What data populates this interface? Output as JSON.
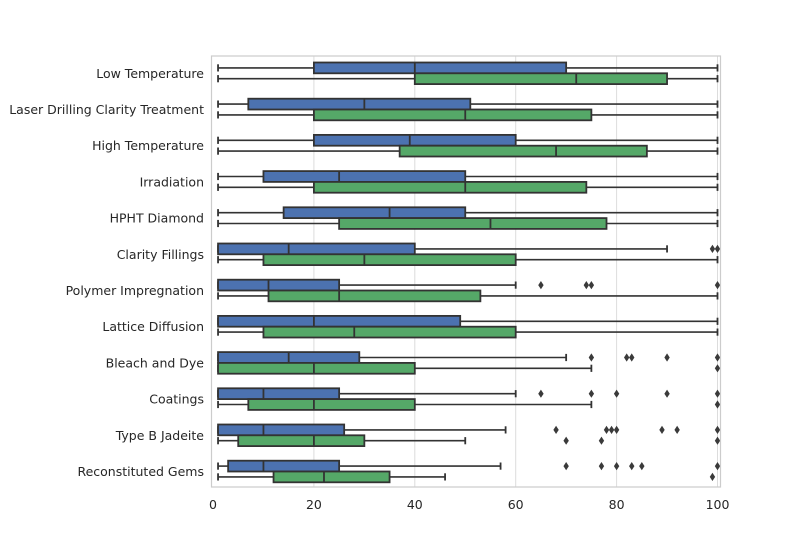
{
  "figure": {
    "background": "#ffffff"
  },
  "chart_data": {
    "type": "boxplot",
    "orientation": "horizontal",
    "title": "",
    "xlabel": "",
    "ylabel": "",
    "xlim": [
      0,
      100
    ],
    "xticks": [
      0,
      20,
      40,
      60,
      80,
      100
    ],
    "grid": "vertical-only",
    "legend": null,
    "categories": [
      "Low Temperature",
      "Laser Drilling Clarity Treatment",
      "High Temperature",
      "Irradiation",
      "HPHT Diamond",
      "Clarity Fillings",
      "Polymer Impregnation",
      "Lattice Diffusion",
      "Bleach and Dye",
      "Coatings",
      "Type B Jadeite",
      "Reconstituted Gems"
    ],
    "series": [
      {
        "name": "series-1-blue",
        "color": "#4C72B0",
        "boxes": [
          {
            "whislo": 1,
            "q1": 20,
            "med": 40,
            "q3": 70,
            "whishi": 100,
            "fliers": []
          },
          {
            "whislo": 1,
            "q1": 7,
            "med": 30,
            "q3": 51,
            "whishi": 100,
            "fliers": []
          },
          {
            "whislo": 1,
            "q1": 20,
            "med": 39,
            "q3": 60,
            "whishi": 100,
            "fliers": []
          },
          {
            "whislo": 1,
            "q1": 10,
            "med": 25,
            "q3": 50,
            "whishi": 100,
            "fliers": []
          },
          {
            "whislo": 1,
            "q1": 14,
            "med": 35,
            "q3": 50,
            "whishi": 100,
            "fliers": []
          },
          {
            "whislo": 1,
            "q1": 1,
            "med": 15,
            "q3": 40,
            "whishi": 90,
            "fliers": [
              99,
              100
            ]
          },
          {
            "whislo": 1,
            "q1": 1,
            "med": 11,
            "q3": 25,
            "whishi": 60,
            "fliers": [
              65,
              74,
              75,
              100
            ]
          },
          {
            "whislo": 1,
            "q1": 1,
            "med": 20,
            "q3": 49,
            "whishi": 100,
            "fliers": []
          },
          {
            "whislo": 1,
            "q1": 1,
            "med": 15,
            "q3": 29,
            "whishi": 70,
            "fliers": [
              75,
              82,
              83,
              90,
              100
            ]
          },
          {
            "whislo": 1,
            "q1": 1,
            "med": 10,
            "q3": 25,
            "whishi": 60,
            "fliers": [
              65,
              75,
              80,
              90,
              100
            ]
          },
          {
            "whislo": 1,
            "q1": 1,
            "med": 10,
            "q3": 26,
            "whishi": 58,
            "fliers": [
              68,
              78,
              79,
              80,
              89,
              92,
              100
            ]
          },
          {
            "whislo": 1,
            "q1": 3,
            "med": 10,
            "q3": 25,
            "whishi": 57,
            "fliers": [
              70,
              77,
              80,
              83,
              85,
              100
            ]
          }
        ]
      },
      {
        "name": "series-2-green",
        "color": "#55A868",
        "boxes": [
          {
            "whislo": 1,
            "q1": 40,
            "med": 72,
            "q3": 90,
            "whishi": 100,
            "fliers": []
          },
          {
            "whislo": 1,
            "q1": 20,
            "med": 50,
            "q3": 75,
            "whishi": 100,
            "fliers": []
          },
          {
            "whislo": 1,
            "q1": 37,
            "med": 68,
            "q3": 86,
            "whishi": 100,
            "fliers": []
          },
          {
            "whislo": 1,
            "q1": 20,
            "med": 50,
            "q3": 74,
            "whishi": 100,
            "fliers": []
          },
          {
            "whislo": 1,
            "q1": 25,
            "med": 55,
            "q3": 78,
            "whishi": 100,
            "fliers": []
          },
          {
            "whislo": 1,
            "q1": 10,
            "med": 30,
            "q3": 60,
            "whishi": 100,
            "fliers": []
          },
          {
            "whislo": 1,
            "q1": 11,
            "med": 25,
            "q3": 53,
            "whishi": 100,
            "fliers": []
          },
          {
            "whislo": 1,
            "q1": 10,
            "med": 28,
            "q3": 60,
            "whishi": 100,
            "fliers": []
          },
          {
            "whislo": 1,
            "q1": 1,
            "med": 20,
            "q3": 40,
            "whishi": 75,
            "fliers": [
              100
            ]
          },
          {
            "whislo": 1,
            "q1": 7,
            "med": 20,
            "q3": 40,
            "whishi": 75,
            "fliers": [
              100
            ]
          },
          {
            "whislo": 1,
            "q1": 5,
            "med": 20,
            "q3": 30,
            "whishi": 50,
            "fliers": [
              70,
              77,
              100
            ]
          },
          {
            "whislo": 1,
            "q1": 12,
            "med": 22,
            "q3": 35,
            "whishi": 46,
            "fliers": [
              99
            ]
          }
        ]
      }
    ],
    "style": {
      "box_line_color": "#333333",
      "whisker_color": "#333333",
      "flier_color": "#3a3a3a",
      "grid_color": "#dcdcdc",
      "spine_color": "#cccccc",
      "text_color": "#262626"
    }
  }
}
